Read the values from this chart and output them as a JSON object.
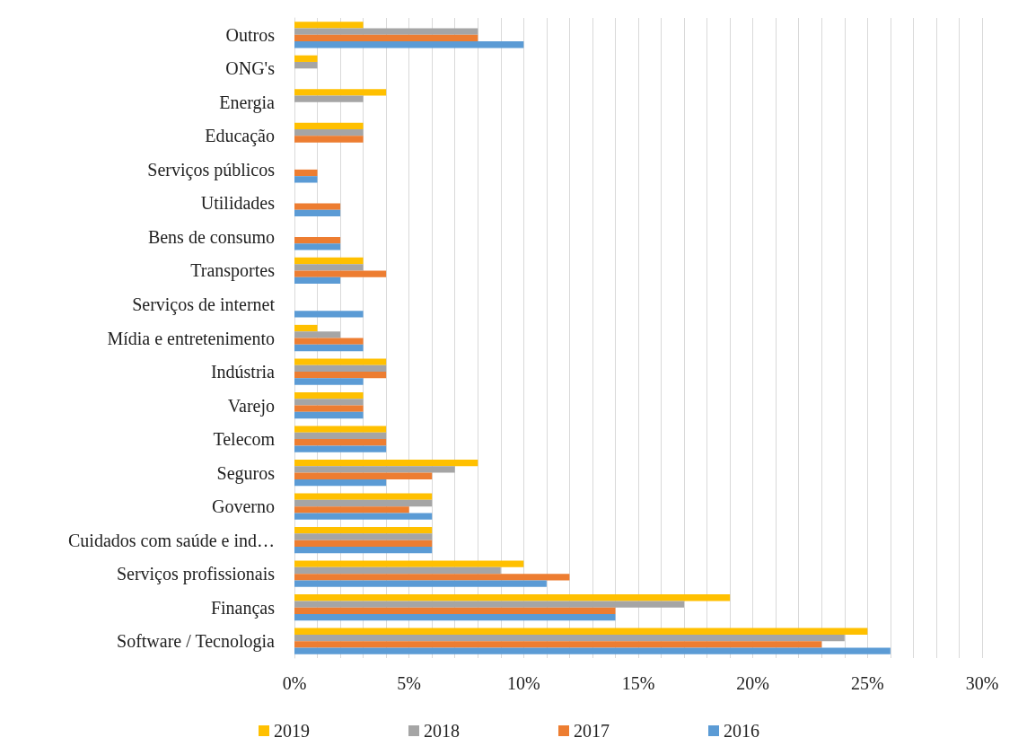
{
  "chart_data": {
    "type": "bar",
    "orientation": "horizontal",
    "categories": [
      "Outros",
      "ONG's",
      "Energia",
      "Educação",
      "Serviços públicos",
      "Utilidades",
      "Bens de consumo",
      "Transportes",
      "Serviços de internet",
      "Mídia e entretenimento",
      "Indústria",
      "Varejo",
      "Telecom",
      "Seguros",
      "Governo",
      "Cuidados com saúde e ind…",
      "Serviços profissionais",
      "Finanças",
      "Software / Tecnologia"
    ],
    "series": [
      {
        "name": "2019",
        "color": "#ffc000",
        "values": [
          3,
          1,
          4,
          3,
          null,
          null,
          null,
          3,
          null,
          1,
          4,
          3,
          4,
          8,
          6,
          6,
          10,
          19,
          25
        ]
      },
      {
        "name": "2018",
        "color": "#a5a5a5",
        "values": [
          8,
          1,
          3,
          3,
          null,
          null,
          null,
          3,
          null,
          2,
          4,
          3,
          4,
          7,
          6,
          6,
          9,
          17,
          24
        ]
      },
      {
        "name": "2017",
        "color": "#ed7d31",
        "values": [
          8,
          null,
          null,
          3,
          1,
          2,
          2,
          4,
          null,
          3,
          4,
          3,
          4,
          6,
          5,
          6,
          12,
          14,
          23
        ]
      },
      {
        "name": "2016",
        "color": "#5b9bd5",
        "values": [
          10,
          null,
          null,
          null,
          1,
          2,
          2,
          2,
          3,
          3,
          3,
          3,
          4,
          4,
          6,
          6,
          11,
          14,
          26
        ]
      }
    ],
    "xlim": [
      0,
      30
    ],
    "xticks": [
      {
        "value": 0,
        "label": "0%"
      },
      {
        "value": 1,
        "label": null
      },
      {
        "value": 2,
        "label": null
      },
      {
        "value": 3,
        "label": null
      },
      {
        "value": 4,
        "label": null
      },
      {
        "value": 5,
        "label": "5%"
      },
      {
        "value": 6,
        "label": null
      },
      {
        "value": 7,
        "label": null
      },
      {
        "value": 8,
        "label": null
      },
      {
        "value": 9,
        "label": null
      },
      {
        "value": 10,
        "label": "10%"
      },
      {
        "value": 11,
        "label": null
      },
      {
        "value": 12,
        "label": null
      },
      {
        "value": 13,
        "label": null
      },
      {
        "value": 14,
        "label": null
      },
      {
        "value": 15,
        "label": "15%"
      },
      {
        "value": 16,
        "label": null
      },
      {
        "value": 17,
        "label": null
      },
      {
        "value": 18,
        "label": null
      },
      {
        "value": 19,
        "label": null
      },
      {
        "value": 20,
        "label": "20%"
      },
      {
        "value": 21,
        "label": null
      },
      {
        "value": 22,
        "label": null
      },
      {
        "value": 23,
        "label": null
      },
      {
        "value": 24,
        "label": null
      },
      {
        "value": 25,
        "label": "25%"
      },
      {
        "value": 26,
        "label": null
      },
      {
        "value": 27,
        "label": null
      },
      {
        "value": 28,
        "label": null
      },
      {
        "value": 29,
        "label": null
      },
      {
        "value": 30,
        "label": "30%"
      }
    ],
    "grid": "x",
    "legend": "bottom"
  }
}
